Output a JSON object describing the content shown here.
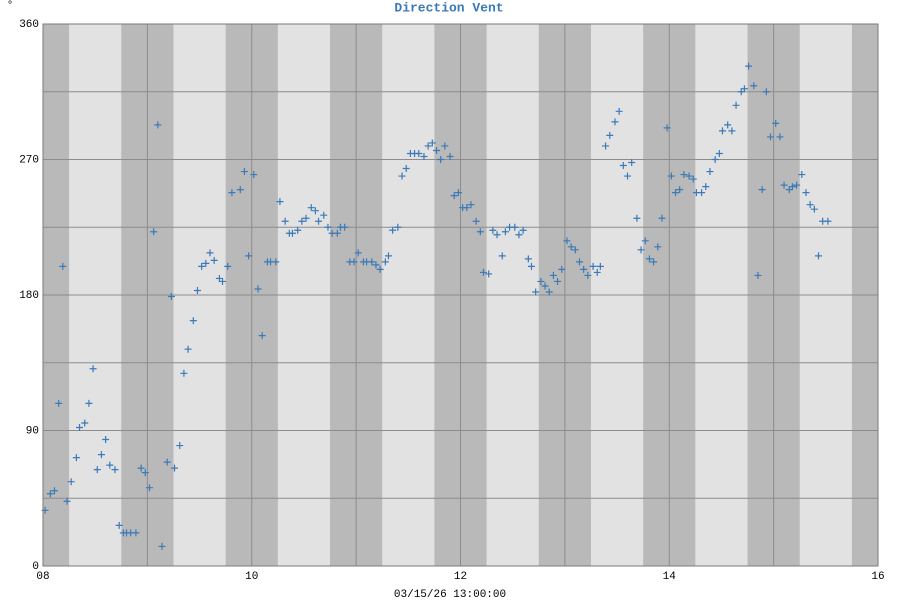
{
  "chart_data": {
    "type": "scatter",
    "title": "Direction Vent",
    "y_unit": "°",
    "x_label": "03/15/26 13:00:00",
    "color": "#3a7ab8",
    "xlim": [
      8,
      16
    ],
    "xticks": [
      {
        "value": 8,
        "label": "08"
      },
      10,
      12,
      14,
      16
    ],
    "minor_xticks": [
      9,
      11,
      13,
      15
    ],
    "ylim": [
      0,
      360
    ],
    "yticks": [
      0,
      90,
      180,
      270,
      360
    ],
    "minor_yticks": [
      45,
      135,
      225,
      315
    ],
    "grid": true,
    "x": [
      8.02,
      8.07,
      8.11,
      8.15,
      8.19,
      8.23,
      8.27,
      8.32,
      8.35,
      8.4,
      8.44,
      8.48,
      8.52,
      8.56,
      8.6,
      8.64,
      8.69,
      8.73,
      8.77,
      8.8,
      8.84,
      8.89,
      8.94,
      8.98,
      9.02,
      9.06,
      9.1,
      9.14,
      9.19,
      9.23,
      9.26,
      9.31,
      9.35,
      9.39,
      9.44,
      9.48,
      9.52,
      9.56,
      9.6,
      9.64,
      9.69,
      9.72,
      9.77,
      9.81,
      9.89,
      9.93,
      9.97,
      10.02,
      10.06,
      10.1,
      10.15,
      10.18,
      10.23,
      10.27,
      10.32,
      10.36,
      10.39,
      10.44,
      10.48,
      10.52,
      10.57,
      10.61,
      10.64,
      10.69,
      10.73,
      10.77,
      10.82,
      10.85,
      10.89,
      10.94,
      10.98,
      11.02,
      11.07,
      11.1,
      11.15,
      11.19,
      11.23,
      11.28,
      11.31,
      11.35,
      11.4,
      11.44,
      11.48,
      11.52,
      11.56,
      11.6,
      11.65,
      11.69,
      11.73,
      11.77,
      11.81,
      11.85,
      11.9,
      11.94,
      11.98,
      12.02,
      12.06,
      12.1,
      12.15,
      12.19,
      12.22,
      12.27,
      12.31,
      12.35,
      12.4,
      12.43,
      12.47,
      12.52,
      12.56,
      12.6,
      12.65,
      12.68,
      12.72,
      12.77,
      12.81,
      12.85,
      12.89,
      12.93,
      12.97,
      13.02,
      13.06,
      13.1,
      13.14,
      13.18,
      13.22,
      13.27,
      13.31,
      13.34,
      13.39,
      13.43,
      13.48,
      13.52,
      13.56,
      13.6,
      13.64,
      13.69,
      13.73,
      13.77,
      13.81,
      13.85,
      13.89,
      13.93,
      13.98,
      14.02,
      14.06,
      14.1,
      14.14,
      14.19,
      14.23,
      14.26,
      14.31,
      14.35,
      14.39,
      14.44,
      14.48,
      14.51,
      14.56,
      14.6,
      14.64,
      14.69,
      14.72,
      14.76,
      14.81,
      14.85,
      14.89,
      14.93,
      14.97,
      15.02,
      15.06,
      15.1,
      15.15,
      15.18,
      15.22,
      15.27,
      15.31,
      15.35,
      15.39,
      15.43,
      15.47,
      15.52
    ],
    "values": [
      37,
      48,
      50,
      108,
      199,
      43,
      56,
      72,
      92,
      95,
      108,
      131,
      64,
      74,
      84,
      67,
      64,
      27,
      22,
      22,
      22,
      22,
      65,
      62,
      52,
      222,
      293,
      13,
      69,
      179,
      65,
      80,
      128,
      144,
      163,
      183,
      199,
      201,
      208,
      203,
      191,
      189,
      199,
      248,
      250,
      262,
      206,
      260,
      184,
      153,
      202,
      202,
      202,
      242,
      229,
      221,
      221,
      223,
      229,
      231,
      238,
      236,
      229,
      233,
      225,
      221,
      221,
      225,
      225,
      202,
      202,
      208,
      202,
      202,
      202,
      200,
      197,
      202,
      206,
      223,
      225,
      259,
      264,
      274,
      274,
      274,
      272,
      279,
      281,
      276,
      270,
      279,
      272,
      246,
      248,
      238,
      238,
      240,
      229,
      222,
      195,
      194,
      223,
      220,
      206,
      222,
      225,
      225,
      220,
      223,
      204,
      199,
      182,
      189,
      186,
      182,
      193,
      189,
      197,
      216,
      212,
      210,
      202,
      197,
      193,
      199,
      195,
      199,
      279,
      286,
      295,
      302,
      266,
      259,
      268,
      231,
      210,
      216,
      204,
      202,
      212,
      231,
      291,
      259,
      248,
      250,
      260,
      259,
      257,
      248,
      248,
      252,
      262,
      270,
      274,
      289,
      293,
      289,
      306,
      315,
      317,
      332,
      319,
      193,
      250,
      315,
      285,
      294,
      285,
      253,
      250,
      252,
      253,
      260,
      248,
      240,
      237,
      206,
      229,
      229
    ]
  }
}
